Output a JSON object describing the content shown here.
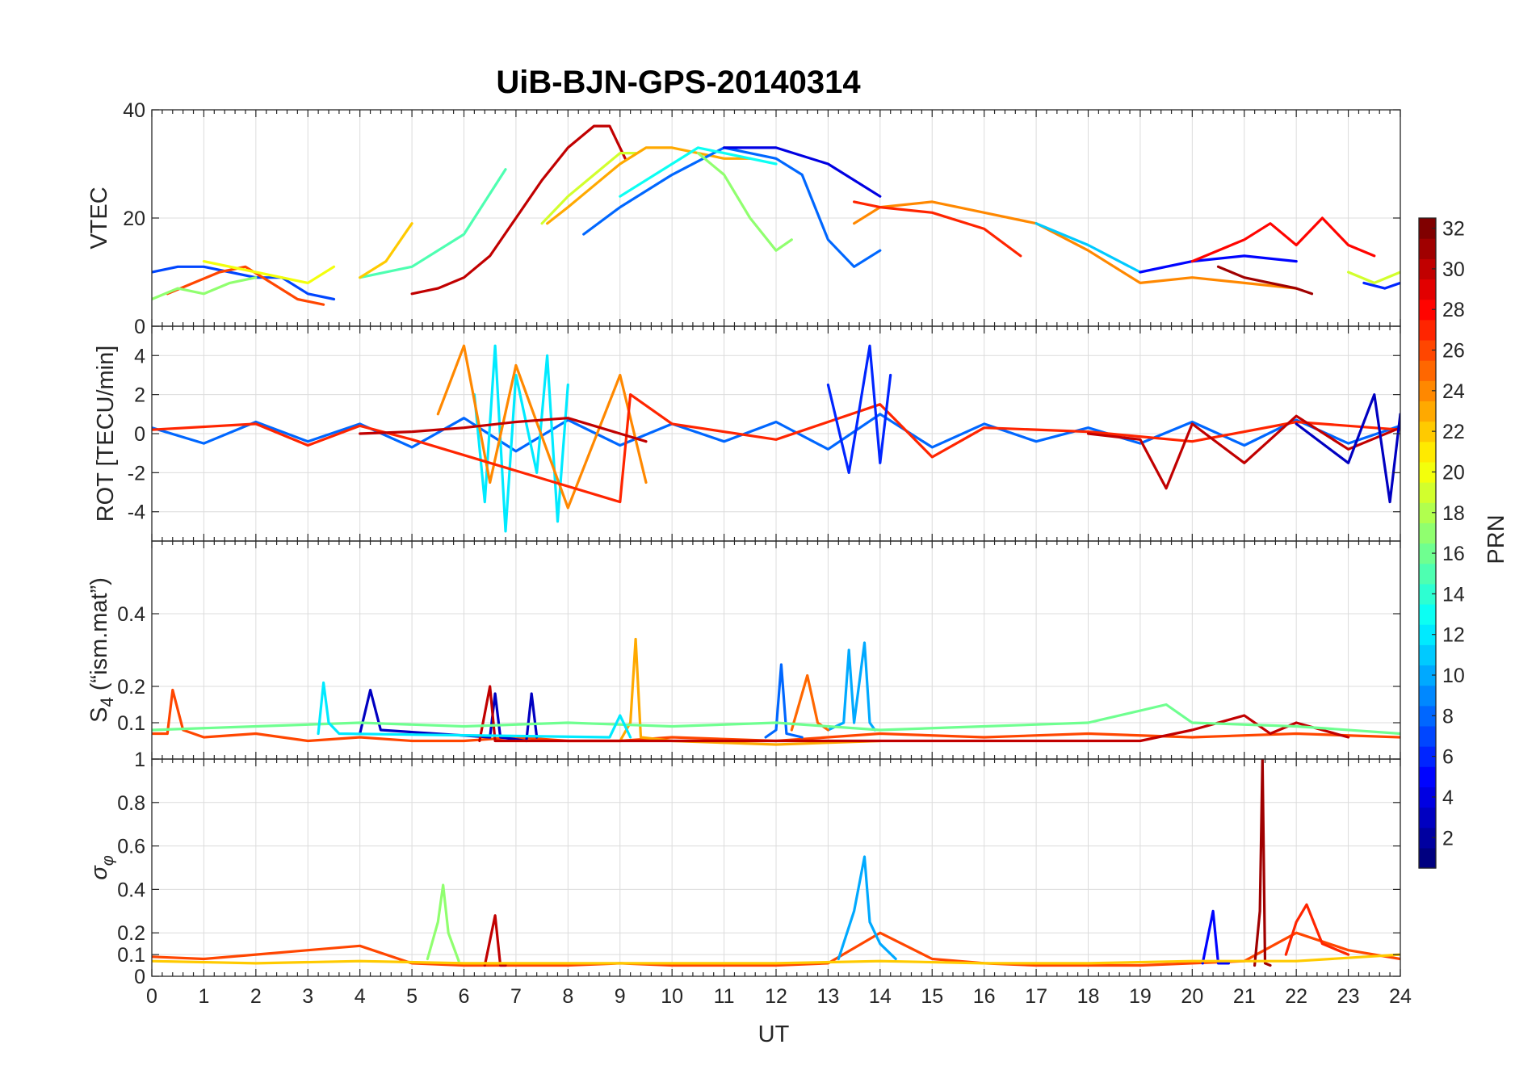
{
  "figure": {
    "title": "UiB-BJN-GPS-20140314",
    "x_label": "UT",
    "x_ticks": [
      "0",
      "1",
      "2",
      "3",
      "4",
      "5",
      "6",
      "7",
      "8",
      "9",
      "10",
      "11",
      "12",
      "13",
      "14",
      "15",
      "16",
      "17",
      "18",
      "19",
      "20",
      "21",
      "22",
      "23",
      "24"
    ]
  },
  "colorbar": {
    "label": "PRN",
    "range": [
      1,
      32
    ],
    "ticks": [
      "2",
      "4",
      "6",
      "8",
      "10",
      "12",
      "14",
      "16",
      "18",
      "20",
      "22",
      "24",
      "26",
      "28",
      "30",
      "32"
    ],
    "colormap": "jet"
  },
  "chart_data": [
    {
      "type": "line",
      "panel": "vtec",
      "ylabel": "VTEC",
      "ylim": [
        0,
        40
      ],
      "yticks": [
        "0",
        "20",
        "40"
      ],
      "xlim": [
        0,
        24
      ],
      "grid": true,
      "series": [
        {
          "prn": 30,
          "x": [
            5.0,
            5.5,
            6.0,
            6.5,
            7.0,
            7.5,
            8.0,
            8.5,
            8.8,
            9.1
          ],
          "y": [
            6,
            7,
            9,
            13,
            20,
            27,
            33,
            37,
            37,
            31
          ]
        },
        {
          "prn": 19,
          "x": [
            7.5,
            8.0,
            8.5,
            9.0,
            9.3
          ],
          "y": [
            19,
            24,
            28,
            32,
            32
          ]
        },
        {
          "prn": 23,
          "x": [
            7.6,
            8.0,
            8.5,
            9.0,
            9.5,
            10.0,
            11.0,
            11.5
          ],
          "y": [
            19,
            22,
            26,
            30,
            33,
            33,
            31,
            31
          ]
        },
        {
          "prn": 8,
          "x": [
            8.3,
            9.0,
            10.0,
            11.0,
            12.0,
            12.5,
            13.0,
            13.5,
            14.0
          ],
          "y": [
            17,
            22,
            28,
            33,
            31,
            28,
            16,
            11,
            14
          ]
        },
        {
          "prn": 15,
          "x": [
            4.0,
            5.0,
            6.0,
            6.8
          ],
          "y": [
            9,
            11,
            17,
            29
          ]
        },
        {
          "prn": 13,
          "x": [
            9.0,
            10.0,
            10.5,
            11.0,
            12.0
          ],
          "y": [
            24,
            30,
            33,
            32,
            30
          ]
        },
        {
          "prn": 17,
          "x": [
            10.5,
            11.0,
            11.5,
            12.0,
            12.3
          ],
          "y": [
            32,
            28,
            20,
            14,
            16
          ]
        },
        {
          "prn": 4,
          "x": [
            11.0,
            12.0,
            13.0,
            14.0
          ],
          "y": [
            33,
            33,
            30,
            24
          ]
        },
        {
          "prn": 24,
          "x": [
            13.5,
            14.0,
            15.0,
            16.0,
            17.0,
            18.0,
            19.0,
            20.0,
            21.0,
            22.0
          ],
          "y": [
            19,
            22,
            23,
            21,
            19,
            14,
            8,
            9,
            8,
            7
          ]
        },
        {
          "prn": 27,
          "x": [
            13.5,
            14.0,
            15.0,
            16.0,
            16.7
          ],
          "y": [
            23,
            22,
            21,
            18,
            13
          ]
        },
        {
          "prn": 11,
          "x": [
            17.0,
            18.0,
            19.0
          ],
          "y": [
            19,
            15,
            10
          ]
        },
        {
          "prn": 5,
          "x": [
            19.0,
            20.0,
            21.0,
            22.0
          ],
          "y": [
            10,
            12,
            13,
            12
          ]
        },
        {
          "prn": 28,
          "x": [
            20.0,
            21.0,
            21.5,
            22.0,
            22.5,
            23.0,
            23.5
          ],
          "y": [
            12,
            16,
            19,
            15,
            20,
            15,
            13
          ]
        },
        {
          "prn": 31,
          "x": [
            20.5,
            21.0,
            21.5,
            22.0,
            22.3
          ],
          "y": [
            11,
            9,
            8,
            7,
            6
          ]
        },
        {
          "prn": 7,
          "x": [
            0.0,
            0.5,
            1.0,
            1.5,
            2.0,
            2.5,
            3.0,
            3.5
          ],
          "y": [
            10,
            11,
            11,
            10,
            9,
            9,
            6,
            5
          ]
        },
        {
          "prn": 26,
          "x": [
            0.3,
            0.8,
            1.3,
            1.8,
            2.3,
            2.8,
            3.3
          ],
          "y": [
            6,
            8,
            10,
            11,
            8,
            5,
            4
          ]
        },
        {
          "prn": 20,
          "x": [
            1.0,
            2.0,
            3.0,
            3.5
          ],
          "y": [
            12,
            10,
            8,
            11
          ]
        },
        {
          "prn": 22,
          "x": [
            4.0,
            4.5,
            5.0
          ],
          "y": [
            9,
            12,
            19
          ]
        },
        {
          "prn": 17,
          "x": [
            0.0,
            0.5,
            1.0,
            1.5,
            2.0
          ],
          "y": [
            5,
            7,
            6,
            8,
            9
          ]
        },
        {
          "prn": 19,
          "x": [
            23.0,
            23.5,
            24.0
          ],
          "y": [
            10,
            8,
            10
          ]
        },
        {
          "prn": 6,
          "x": [
            23.3,
            23.7,
            24.0
          ],
          "y": [
            8,
            7,
            8
          ]
        }
      ]
    },
    {
      "type": "line",
      "panel": "rot",
      "ylabel": "ROT [TECU/min]",
      "ylim": [
        -5.5,
        5.5
      ],
      "yticks": [
        "-4",
        "-2",
        "0",
        "2",
        "4"
      ],
      "xlim": [
        0,
        24
      ],
      "grid": true,
      "series": [
        {
          "prn": 8,
          "x": [
            0,
            1,
            2,
            3,
            4,
            5,
            6,
            7,
            8,
            9,
            10,
            11,
            12,
            13,
            14,
            15,
            16,
            17,
            18,
            19,
            20,
            21,
            22,
            23,
            24
          ],
          "y": [
            0.3,
            -0.5,
            0.6,
            -0.4,
            0.5,
            -0.7,
            0.8,
            -0.9,
            0.7,
            -0.6,
            0.5,
            -0.4,
            0.6,
            -0.8,
            1.0,
            -0.7,
            0.5,
            -0.4,
            0.3,
            -0.5,
            0.6,
            -0.6,
            0.7,
            -0.5,
            0.4
          ]
        },
        {
          "prn": 12,
          "x": [
            6.2,
            6.4,
            6.6,
            6.8,
            7.0,
            7.4,
            7.6,
            7.8,
            8.0
          ],
          "y": [
            2.0,
            -3.5,
            4.5,
            -5.0,
            3.0,
            -2.0,
            4.0,
            -4.5,
            2.5
          ]
        },
        {
          "prn": 24,
          "x": [
            5.5,
            6.0,
            6.5,
            7.0,
            8.0,
            9.0,
            9.5
          ],
          "y": [
            1.0,
            4.5,
            -2.5,
            3.5,
            -3.8,
            3.0,
            -2.5
          ]
        },
        {
          "prn": 27,
          "x": [
            0,
            2,
            3,
            4,
            5,
            9,
            9.2,
            10,
            12,
            14,
            15,
            16,
            18,
            20,
            22,
            24
          ],
          "y": [
            0.2,
            0.5,
            -0.6,
            0.4,
            -0.3,
            -3.5,
            2.0,
            0.5,
            -0.3,
            1.5,
            -1.2,
            0.3,
            0.1,
            -0.4,
            0.6,
            0.2
          ]
        },
        {
          "prn": 6,
          "x": [
            13.0,
            13.4,
            13.8,
            14.0,
            14.2
          ],
          "y": [
            2.5,
            -2.0,
            4.5,
            -1.5,
            3.0
          ]
        },
        {
          "prn": 30,
          "x": [
            18.0,
            19.0,
            19.5,
            20.0,
            21.0,
            22.0,
            23.0,
            24.0
          ],
          "y": [
            0.0,
            -0.3,
            -2.8,
            0.5,
            -1.5,
            0.9,
            -0.8,
            0.3
          ]
        },
        {
          "prn": 3,
          "x": [
            22.0,
            23.0,
            23.5,
            23.8,
            24.0
          ],
          "y": [
            0.5,
            -1.5,
            2.0,
            -3.5,
            1.0
          ]
        },
        {
          "prn": 30,
          "x": [
            4.0,
            5.0,
            6.0,
            7.0,
            8.0,
            8.5,
            9.0,
            9.5
          ],
          "y": [
            0.0,
            0.1,
            0.3,
            0.6,
            0.8,
            0.4,
            0.0,
            -0.4
          ]
        }
      ]
    },
    {
      "type": "line",
      "panel": "s4",
      "ylabel": "S4 (\"ism.mat\")",
      "ylim": [
        0,
        0.6
      ],
      "yticks": [
        "0.1",
        "0.2",
        "0.4"
      ],
      "xlim": [
        0,
        24
      ],
      "grid": true,
      "series": [
        {
          "prn": 26,
          "x": [
            0,
            0.3,
            0.4,
            0.6,
            1,
            2,
            3,
            4,
            5,
            6,
            7,
            8,
            9,
            10,
            12,
            14,
            16,
            18,
            20,
            22,
            24
          ],
          "y": [
            0.07,
            0.07,
            0.19,
            0.08,
            0.06,
            0.07,
            0.05,
            0.06,
            0.05,
            0.05,
            0.06,
            0.05,
            0.05,
            0.06,
            0.05,
            0.07,
            0.06,
            0.07,
            0.06,
            0.07,
            0.06
          ]
        },
        {
          "prn": 3,
          "x": [
            4.0,
            4.2,
            4.4,
            6.5,
            6.6,
            6.7,
            7.2,
            7.3,
            7.4
          ],
          "y": [
            0.07,
            0.19,
            0.08,
            0.06,
            0.18,
            0.06,
            0.05,
            0.18,
            0.06
          ]
        },
        {
          "prn": 23,
          "x": [
            9.0,
            9.2,
            9.3,
            9.4,
            10,
            12,
            14
          ],
          "y": [
            0.05,
            0.1,
            0.33,
            0.06,
            0.05,
            0.04,
            0.05
          ]
        },
        {
          "prn": 10,
          "x": [
            13.0,
            13.3,
            13.4,
            13.5,
            13.7,
            13.8,
            13.9
          ],
          "y": [
            0.08,
            0.1,
            0.3,
            0.1,
            0.32,
            0.1,
            0.08
          ]
        },
        {
          "prn": 8,
          "x": [
            11.8,
            12.0,
            12.1,
            12.2,
            12.5
          ],
          "y": [
            0.06,
            0.08,
            0.26,
            0.07,
            0.06
          ]
        },
        {
          "prn": 25,
          "x": [
            12.3,
            12.6,
            12.8,
            13.0
          ],
          "y": [
            0.08,
            0.23,
            0.1,
            0.08
          ]
        },
        {
          "prn": 30,
          "x": [
            6.3,
            6.5,
            6.6,
            19.0,
            20.0,
            21.0,
            21.5,
            22.0,
            22.5,
            23.0
          ],
          "y": [
            0.05,
            0.2,
            0.05,
            0.05,
            0.08,
            0.12,
            0.07,
            0.1,
            0.08,
            0.06
          ]
        },
        {
          "prn": 16,
          "x": [
            0,
            2,
            4,
            6,
            8,
            10,
            12,
            14,
            16,
            18,
            19.5,
            20,
            22,
            24
          ],
          "y": [
            0.08,
            0.09,
            0.1,
            0.09,
            0.1,
            0.09,
            0.1,
            0.08,
            0.09,
            0.1,
            0.15,
            0.1,
            0.09,
            0.07
          ]
        },
        {
          "prn": 12,
          "x": [
            3.2,
            3.3,
            3.4,
            3.6,
            8.8,
            9.0,
            9.2
          ],
          "y": [
            0.07,
            0.21,
            0.1,
            0.07,
            0.06,
            0.12,
            0.06
          ]
        }
      ]
    },
    {
      "type": "line",
      "panel": "sigma_phi",
      "ylabel": "σφ",
      "ylim": [
        0,
        1
      ],
      "yticks": [
        "0",
        "0.1",
        "0.2",
        "0.4",
        "0.6",
        "0.8",
        "1"
      ],
      "xlim": [
        0,
        24
      ],
      "grid": true,
      "series": [
        {
          "prn": 26,
          "x": [
            0,
            1,
            2,
            3,
            4,
            5,
            6,
            7,
            8,
            9,
            10,
            11,
            12,
            13,
            14,
            15,
            16,
            17,
            18,
            19,
            20,
            21,
            22,
            23,
            24
          ],
          "y": [
            0.09,
            0.08,
            0.1,
            0.12,
            0.14,
            0.06,
            0.05,
            0.05,
            0.05,
            0.06,
            0.05,
            0.05,
            0.05,
            0.06,
            0.2,
            0.08,
            0.06,
            0.05,
            0.05,
            0.05,
            0.06,
            0.07,
            0.2,
            0.12,
            0.08
          ]
        },
        {
          "prn": 17,
          "x": [
            5.3,
            5.5,
            5.6,
            5.7,
            5.9
          ],
          "y": [
            0.08,
            0.25,
            0.42,
            0.2,
            0.07
          ]
        },
        {
          "prn": 10,
          "x": [
            13.2,
            13.5,
            13.7,
            13.8,
            14.0,
            14.3
          ],
          "y": [
            0.08,
            0.3,
            0.55,
            0.25,
            0.15,
            0.08
          ]
        },
        {
          "prn": 31,
          "x": [
            21.2,
            21.3,
            21.35,
            21.4,
            21.5
          ],
          "y": [
            0.05,
            0.3,
            1.0,
            0.06,
            0.05
          ]
        },
        {
          "prn": 30,
          "x": [
            6.4,
            6.6,
            6.7,
            6.8
          ],
          "y": [
            0.05,
            0.28,
            0.05,
            0.05
          ]
        },
        {
          "prn": 5,
          "x": [
            20.2,
            20.4,
            20.5,
            20.7
          ],
          "y": [
            0.06,
            0.3,
            0.06,
            0.06
          ]
        },
        {
          "prn": 27,
          "x": [
            21.8,
            22.0,
            22.2,
            22.5,
            23.0
          ],
          "y": [
            0.1,
            0.25,
            0.33,
            0.15,
            0.1
          ]
        },
        {
          "prn": 22,
          "x": [
            0,
            2,
            4,
            6,
            8,
            10,
            12,
            14,
            16,
            18,
            20,
            22,
            24
          ],
          "y": [
            0.07,
            0.06,
            0.07,
            0.06,
            0.06,
            0.06,
            0.06,
            0.07,
            0.06,
            0.06,
            0.07,
            0.07,
            0.1
          ]
        }
      ]
    }
  ]
}
